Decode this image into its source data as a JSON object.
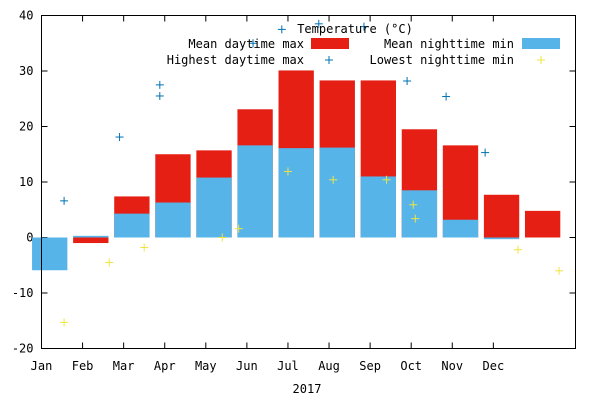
{
  "chart_data": {
    "type": "bar",
    "title": "Temperature (°C)",
    "xlabel": "2017",
    "ylabel": "",
    "ylim": [
      -20,
      40
    ],
    "yticks": [
      -20,
      -10,
      0,
      10,
      20,
      30,
      40
    ],
    "categories": [
      "Jan",
      "Feb",
      "Mar",
      "Apr",
      "May",
      "Jun",
      "Jul",
      "Aug",
      "Sep",
      "Oct",
      "Nov",
      "Dec"
    ],
    "grid": false,
    "legend_position": "top-right",
    "series": [
      {
        "name": "Mean daytime max",
        "kind": "bar",
        "color": "#e51f14",
        "x": [
          1.2,
          2.2,
          3.2,
          4.2,
          5.2,
          6.2,
          7.2,
          8.2,
          9.2,
          10.2,
          11.2,
          12.2
        ],
        "values": [
          -1.0,
          7.4,
          15.0,
          15.7,
          23.1,
          30.1,
          28.3,
          28.3,
          19.5,
          16.6,
          7.7,
          4.8
        ]
      },
      {
        "name": "Mean nighttime min",
        "kind": "bar",
        "color": "#56b4e9",
        "x": [
          0.2,
          1.2,
          2.2,
          3.2,
          4.2,
          5.2,
          6.2,
          7.2,
          8.2,
          9.2,
          10.2,
          11.2
        ],
        "values": [
          -5.9,
          0.3,
          4.3,
          6.3,
          10.8,
          16.6,
          16.1,
          16.2,
          11.0,
          8.5,
          3.2,
          -0.3
        ]
      },
      {
        "name": "Highest daytime max",
        "kind": "points",
        "marker": "+",
        "color": "#0072b2",
        "points": [
          [
            0.55,
            6.6
          ],
          [
            1.9,
            18.1
          ],
          [
            2.88,
            27.5
          ],
          [
            2.88,
            25.5
          ],
          [
            5.15,
            35.0
          ],
          [
            5.85,
            37.5
          ],
          [
            6.75,
            38.5
          ],
          [
            7.85,
            38.0
          ],
          [
            8.9,
            28.2
          ],
          [
            9.85,
            25.4
          ],
          [
            10.8,
            15.3
          ]
        ]
      },
      {
        "name": "Lowest nighttime min",
        "kind": "points",
        "marker": "+",
        "color": "#f0e442",
        "points": [
          [
            0.55,
            -15.3
          ],
          [
            1.65,
            -4.5
          ],
          [
            2.5,
            -1.8
          ],
          [
            4.4,
            0.0
          ],
          [
            4.8,
            1.6
          ],
          [
            6.0,
            11.9
          ],
          [
            7.1,
            10.4
          ],
          [
            8.4,
            10.4
          ],
          [
            9.05,
            5.9
          ],
          [
            9.1,
            3.4
          ],
          [
            11.6,
            -2.2
          ],
          [
            12.6,
            -6.0
          ]
        ]
      }
    ]
  }
}
